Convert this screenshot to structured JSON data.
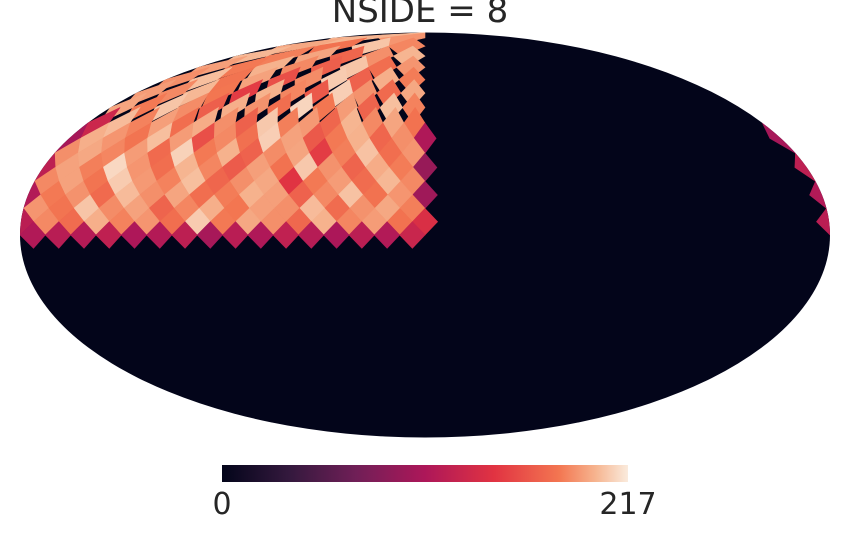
{
  "chart_data": {
    "type": "healpix",
    "title": "NSIDE = 8",
    "nside": 8,
    "rings": [
      [
        190,
        200
      ],
      [
        185,
        205,
        178,
        196
      ],
      [
        200,
        188,
        172,
        195,
        183,
        201
      ],
      [
        190,
        176,
        205,
        168,
        186,
        199,
        181,
        193
      ],
      [
        182,
        198,
        170,
        207,
        187,
        160,
        194,
        179,
        203,
        188
      ],
      [
        196,
        174,
        189,
        208,
        165,
        185,
        199,
        150,
        180,
        201,
        186,
        192
      ],
      [
        184,
        203,
        171,
        192,
        180,
        210,
        176,
        189,
        198,
        168,
        187,
        205,
        181,
        195
      ],
      [
        178,
        195,
        186,
        200,
        172,
        191,
        183,
        206,
        169,
        188,
        197,
        176,
        193,
        184,
        202,
        130
      ],
      [
        110,
        188,
        172,
        199,
        181,
        165,
        194,
        208,
        177,
        186,
        160,
        192,
        203,
        179,
        190,
        198,
        105
      ],
      [
        190,
        176,
        204,
        183,
        150,
        195,
        187,
        170,
        199,
        181,
        209,
        174,
        192,
        185,
        196,
        188
      ],
      [
        95,
        182,
        197,
        171,
        189,
        206,
        178,
        193,
        166,
        185,
        200,
        176,
        190,
        211,
        183,
        194,
        120
      ],
      [
        186,
        201,
        175,
        192,
        181,
        145,
        196,
        188,
        172,
        203,
        184,
        191,
        207,
        179,
        194,
        186
      ],
      [
        100,
        190,
        178,
        204,
        186,
        170,
        193,
        199,
        182,
        176,
        195,
        188,
        202,
        174,
        189,
        181,
        112
      ],
      [
        183,
        196,
        189,
        175,
        202,
        188,
        193,
        180,
        198,
        185,
        171,
        194,
        187,
        205,
        179,
        190
      ],
      [
        140,
        178,
        192,
        185,
        199,
        173,
        188,
        196,
        181,
        207,
        176,
        190,
        184,
        198,
        175,
        186,
        118
      ],
      [
        128,
        112,
        118,
        108,
        115,
        122,
        110,
        117,
        105,
        119,
        113,
        109,
        121,
        114,
        116,
        111
      ]
    ],
    "colorbar": {
      "range": [
        0,
        217
      ],
      "ticks": [
        0,
        217
      ]
    }
  }
}
